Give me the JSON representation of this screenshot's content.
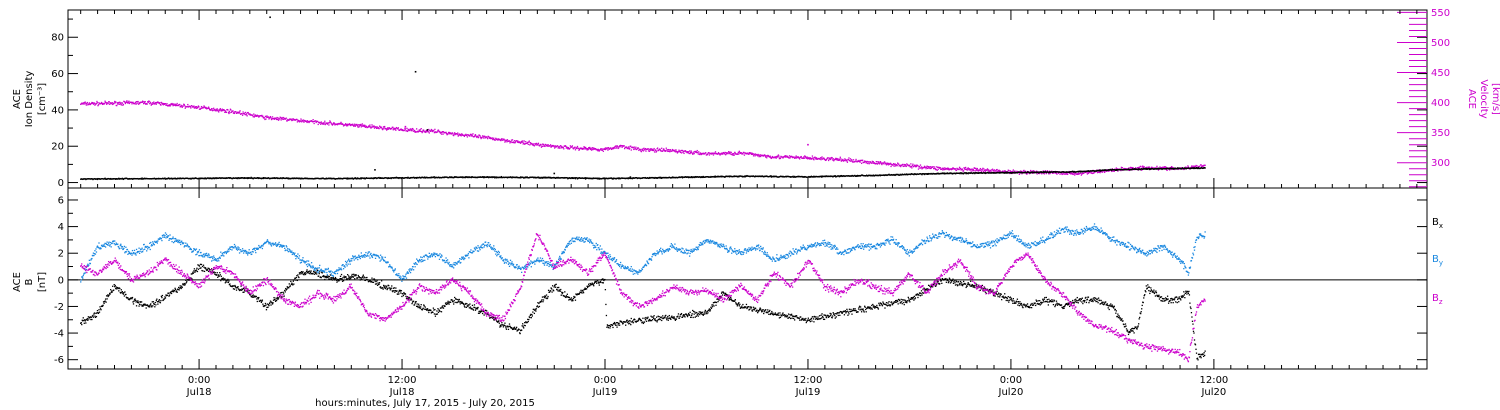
{
  "chart_data": [
    {
      "type": "scatter",
      "panel": "top",
      "ylabel_lines": [
        "ACE",
        "Ion Density",
        "[cm⁻³]"
      ],
      "y2label_lines": [
        "ACE",
        "Velocity",
        "[km/s]"
      ],
      "ylim": [
        -3,
        95
      ],
      "yticks": [
        0,
        20,
        40,
        60,
        80
      ],
      "yticks_minor": [
        10,
        30,
        50,
        70,
        90
      ],
      "y2lim": [
        258,
        554
      ],
      "y2ticks": [
        300,
        350,
        400,
        450,
        500,
        550
      ],
      "y2_minor_step": 10,
      "series": [
        {
          "axis": "left",
          "color": "#000000",
          "points": [
            [
              -7,
              2.0
            ],
            [
              -2,
              2.2
            ],
            [
              3,
              2.5
            ],
            [
              8,
              2.2
            ],
            [
              12,
              2.6
            ],
            [
              16,
              3.0
            ],
            [
              20,
              2.8
            ],
            [
              24,
              2.2
            ],
            [
              28,
              2.8
            ],
            [
              32,
              3.5
            ],
            [
              36,
              3.2
            ],
            [
              40,
              4.0
            ],
            [
              44,
              5.0
            ],
            [
              48,
              5.5
            ],
            [
              52,
              6.0
            ],
            [
              54,
              7.0
            ],
            [
              56,
              7.5
            ],
            [
              59.5,
              8.0
            ]
          ],
          "outliers": [
            [
              4.2,
              91
            ],
            [
              12.8,
              61
            ],
            [
              13.5,
              29
            ],
            [
              10.4,
              7
            ],
            [
              21,
              5
            ],
            [
              25.5,
              3
            ]
          ]
        },
        {
          "axis": "right",
          "color": "#cc00cc",
          "points": [
            [
              -7,
              398
            ],
            [
              -3,
              400
            ],
            [
              0,
              392
            ],
            [
              2,
              385
            ],
            [
              4,
              375
            ],
            [
              6,
              370
            ],
            [
              8,
              365
            ],
            [
              10,
              360
            ],
            [
              12,
              355
            ],
            [
              14,
              352
            ],
            [
              16,
              345
            ],
            [
              18,
              338
            ],
            [
              20,
              330
            ],
            [
              22,
              325
            ],
            [
              24,
              322
            ],
            [
              25,
              328
            ],
            [
              26,
              322
            ],
            [
              28,
              320
            ],
            [
              30,
              315
            ],
            [
              32,
              316
            ],
            [
              34,
              310
            ],
            [
              36,
              308
            ],
            [
              38,
              305
            ],
            [
              40,
              300
            ],
            [
              42,
              295
            ],
            [
              44,
              290
            ],
            [
              46,
              288
            ],
            [
              48,
              285
            ],
            [
              50,
              284
            ],
            [
              52,
              282
            ],
            [
              54,
              288
            ],
            [
              56,
              292
            ],
            [
              58,
              290
            ],
            [
              59.5,
              295
            ]
          ],
          "outliers": [
            [
              12.2,
              360
            ],
            [
              36,
              330
            ]
          ]
        }
      ]
    },
    {
      "type": "scatter",
      "panel": "bottom",
      "ylabel_lines": [
        "ACE",
        "B",
        "[nT]"
      ],
      "ylim": [
        -6.7,
        6.9
      ],
      "yticks": [
        -6,
        -4,
        -2,
        0,
        2,
        4,
        6
      ],
      "yticks_minor": [
        -5,
        -3,
        -1,
        1,
        3,
        5
      ],
      "zero_line": true,
      "legend_position": "right",
      "series": [
        {
          "name": "Bx",
          "color": "#000000",
          "points": [
            [
              -7,
              -3.2
            ],
            [
              -6,
              -2.5
            ],
            [
              -5,
              -0.5
            ],
            [
              -4,
              -1.5
            ],
            [
              -3,
              -2.0
            ],
            [
              -1,
              -0.5
            ],
            [
              0,
              1.0
            ],
            [
              1,
              0.5
            ],
            [
              2,
              -0.5
            ],
            [
              3,
              -1.0
            ],
            [
              4,
              -2.0
            ],
            [
              5,
              -1.0
            ],
            [
              6,
              0.5
            ],
            [
              7,
              0.5
            ],
            [
              8,
              0.0
            ],
            [
              9,
              0.3
            ],
            [
              10,
              0.0
            ],
            [
              11,
              -0.5
            ],
            [
              12,
              -1.0
            ],
            [
              13,
              -2.0
            ],
            [
              14,
              -2.5
            ],
            [
              15,
              -1.5
            ],
            [
              16,
              -2.0
            ],
            [
              17,
              -2.5
            ],
            [
              18,
              -3.5
            ],
            [
              19,
              -3.8
            ],
            [
              20,
              -2.0
            ],
            [
              21,
              -0.5
            ],
            [
              22,
              -1.5
            ],
            [
              23,
              -0.5
            ],
            [
              24,
              0.0
            ],
            [
              24.1,
              -3.5
            ],
            [
              25,
              -3.2
            ],
            [
              26,
              -3.0
            ],
            [
              28,
              -2.8
            ],
            [
              30,
              -2.5
            ],
            [
              31,
              -1.0
            ],
            [
              32,
              -2.0
            ],
            [
              34,
              -2.5
            ],
            [
              36,
              -3.0
            ],
            [
              38,
              -2.5
            ],
            [
              40,
              -2.0
            ],
            [
              42,
              -1.5
            ],
            [
              44,
              0.0
            ],
            [
              46,
              -0.5
            ],
            [
              48,
              -1.5
            ],
            [
              49,
              -2.0
            ],
            [
              50,
              -1.5
            ],
            [
              51,
              -2.0
            ],
            [
              52,
              -1.5
            ],
            [
              53,
              -1.5
            ],
            [
              54,
              -2.0
            ],
            [
              55,
              -4.0
            ],
            [
              55.5,
              -3.5
            ],
            [
              56,
              -0.5
            ],
            [
              57,
              -1.5
            ],
            [
              58,
              -1.5
            ],
            [
              58.5,
              -0.8
            ],
            [
              59,
              -5.8
            ],
            [
              59.5,
              -5.5
            ]
          ]
        },
        {
          "name": "By",
          "color": "#1a88e0",
          "points": [
            [
              -7,
              0.0
            ],
            [
              -6,
              2.5
            ],
            [
              -5,
              2.8
            ],
            [
              -4,
              2.0
            ],
            [
              -3,
              2.5
            ],
            [
              -2,
              3.3
            ],
            [
              -1,
              2.8
            ],
            [
              0,
              2.0
            ],
            [
              1,
              1.5
            ],
            [
              2,
              2.5
            ],
            [
              3,
              2.0
            ],
            [
              4,
              2.8
            ],
            [
              5,
              2.5
            ],
            [
              6,
              1.5
            ],
            [
              7,
              0.8
            ],
            [
              8,
              0.5
            ],
            [
              9,
              1.5
            ],
            [
              10,
              2.0
            ],
            [
              11,
              1.5
            ],
            [
              12,
              0.0
            ],
            [
              13,
              1.5
            ],
            [
              14,
              2.0
            ],
            [
              15,
              1.0
            ],
            [
              16,
              2.0
            ],
            [
              17,
              2.8
            ],
            [
              18,
              1.5
            ],
            [
              19,
              0.8
            ],
            [
              20,
              1.5
            ],
            [
              21,
              1.0
            ],
            [
              22,
              3.0
            ],
            [
              23,
              3.0
            ],
            [
              24,
              2.0
            ],
            [
              25,
              1.0
            ],
            [
              26,
              0.5
            ],
            [
              27,
              2.0
            ],
            [
              28,
              2.5
            ],
            [
              29,
              2.0
            ],
            [
              30,
              3.0
            ],
            [
              31,
              2.5
            ],
            [
              32,
              2.0
            ],
            [
              33,
              2.5
            ],
            [
              34,
              1.5
            ],
            [
              35,
              2.0
            ],
            [
              36,
              2.5
            ],
            [
              37,
              2.8
            ],
            [
              38,
              2.0
            ],
            [
              39,
              2.5
            ],
            [
              40,
              2.5
            ],
            [
              41,
              3.0
            ],
            [
              42,
              2.0
            ],
            [
              43,
              3.0
            ],
            [
              44,
              3.5
            ],
            [
              45,
              3.0
            ],
            [
              46,
              2.5
            ],
            [
              47,
              2.8
            ],
            [
              48,
              3.5
            ],
            [
              49,
              2.5
            ],
            [
              50,
              3.0
            ],
            [
              51,
              3.8
            ],
            [
              52,
              3.5
            ],
            [
              53,
              4.0
            ],
            [
              54,
              3.0
            ],
            [
              55,
              2.5
            ],
            [
              56,
              2.0
            ],
            [
              57,
              2.5
            ],
            [
              58,
              1.5
            ],
            [
              58.5,
              0.5
            ],
            [
              59,
              3.2
            ],
            [
              59.5,
              3.5
            ]
          ]
        },
        {
          "name": "Bz",
          "color": "#cc00cc",
          "points": [
            [
              -7,
              1.0
            ],
            [
              -6,
              0.5
            ],
            [
              -5,
              1.5
            ],
            [
              -4,
              0.0
            ],
            [
              -3,
              0.5
            ],
            [
              -2,
              1.5
            ],
            [
              -1,
              0.5
            ],
            [
              0,
              -0.5
            ],
            [
              1,
              1.0
            ],
            [
              2,
              0.5
            ],
            [
              3,
              -1.0
            ],
            [
              4,
              0.0
            ],
            [
              5,
              -1.5
            ],
            [
              6,
              -2.0
            ],
            [
              7,
              -1.0
            ],
            [
              8,
              -1.5
            ],
            [
              9,
              -0.5
            ],
            [
              10,
              -2.5
            ],
            [
              11,
              -3.0
            ],
            [
              12,
              -2.0
            ],
            [
              13,
              -0.5
            ],
            [
              14,
              -1.0
            ],
            [
              15,
              0.0
            ],
            [
              16,
              -1.0
            ],
            [
              17,
              -2.5
            ],
            [
              18,
              -3.0
            ],
            [
              19,
              -0.5
            ],
            [
              20,
              3.5
            ],
            [
              21,
              1.0
            ],
            [
              22,
              1.5
            ],
            [
              23,
              0.5
            ],
            [
              24,
              2.0
            ],
            [
              25,
              -1.0
            ],
            [
              26,
              -2.0
            ],
            [
              27,
              -1.5
            ],
            [
              28,
              -0.5
            ],
            [
              29,
              -1.0
            ],
            [
              30,
              -0.8
            ],
            [
              31,
              -1.5
            ],
            [
              32,
              -0.5
            ],
            [
              33,
              -1.5
            ],
            [
              34,
              0.5
            ],
            [
              35,
              -0.5
            ],
            [
              36,
              1.5
            ],
            [
              37,
              -0.5
            ],
            [
              38,
              -1.0
            ],
            [
              39,
              0.0
            ],
            [
              40,
              -0.5
            ],
            [
              41,
              -1.0
            ],
            [
              42,
              0.5
            ],
            [
              43,
              -1.0
            ],
            [
              44,
              0.5
            ],
            [
              45,
              1.5
            ],
            [
              46,
              -0.5
            ],
            [
              47,
              -1.0
            ],
            [
              48,
              1.0
            ],
            [
              49,
              2.0
            ],
            [
              50,
              0.0
            ],
            [
              51,
              -1.0
            ],
            [
              52,
              -2.5
            ],
            [
              53,
              -3.5
            ],
            [
              54,
              -3.8
            ],
            [
              55,
              -4.5
            ],
            [
              56,
              -5.0
            ],
            [
              57,
              -5.2
            ],
            [
              58,
              -5.5
            ],
            [
              58.5,
              -6.0
            ],
            [
              59,
              -2.0
            ],
            [
              59.5,
              -1.5
            ]
          ]
        }
      ]
    }
  ],
  "xaxis": {
    "xlim": [
      -7.75,
      72.6
    ],
    "ticks": [
      {
        "x": 0,
        "time": "0:00",
        "day": "Jul18"
      },
      {
        "x": 12,
        "time": "12:00",
        "day": "Jul18"
      },
      {
        "x": 24,
        "time": "0:00",
        "day": "Jul19"
      },
      {
        "x": 36,
        "time": "12:00",
        "day": "Jul19"
      },
      {
        "x": 48,
        "time": "0:00",
        "day": "Jul20"
      },
      {
        "x": 60,
        "time": "12:00",
        "day": "Jul20"
      }
    ],
    "minor_step": 1,
    "xlabel": "hours:minutes, July 17, 2015 - July 20, 2015"
  },
  "legend": {
    "bx": "B",
    "bx_sub": "x",
    "by": "B",
    "by_sub": "y",
    "bz": "B",
    "bz_sub": "z"
  },
  "colors": {
    "density": "#000000",
    "velocity": "#cc00cc",
    "bx": "#000000",
    "by": "#1a88e0",
    "bz": "#cc00cc",
    "axis": "#000000",
    "background": "#ffffff"
  }
}
